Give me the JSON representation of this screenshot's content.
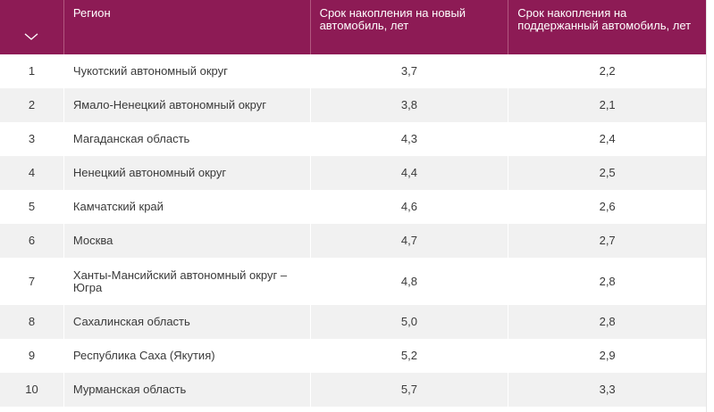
{
  "table": {
    "headers": {
      "region": "Регион",
      "new_car": "Срок накопления на новый автомобиль, лет",
      "used_car": "Срок накопления на поддержанный автомобиль, лет"
    },
    "rows": [
      {
        "n": "1",
        "region": "Чукотский автономный округ",
        "new": "3,7",
        "used": "2,2"
      },
      {
        "n": "2",
        "region": "Ямало-Ненецкий автономный округ",
        "new": "3,8",
        "used": "2,1"
      },
      {
        "n": "3",
        "region": "Магаданская область",
        "new": "4,3",
        "used": "2,4"
      },
      {
        "n": "4",
        "region": "Ненецкий автономный округ",
        "new": "4,4",
        "used": "2,5"
      },
      {
        "n": "5",
        "region": "Камчатский край",
        "new": "4,6",
        "used": "2,6"
      },
      {
        "n": "6",
        "region": "Москва",
        "new": "4,7",
        "used": "2,7"
      },
      {
        "n": "7",
        "region": "Ханты-Мансийский автономный округ – Югра",
        "new": "4,8",
        "used": "2,8"
      },
      {
        "n": "8",
        "region": "Сахалинская область",
        "new": "5,0",
        "used": "2,8"
      },
      {
        "n": "9",
        "region": "Республика Саха (Якутия)",
        "new": "5,2",
        "used": "2,9"
      },
      {
        "n": "10",
        "region": "Мурманская область",
        "new": "5,7",
        "used": "3,3"
      }
    ]
  },
  "colors": {
    "header_bg": "#8d1b55",
    "alt_row": "#f1f1f1"
  },
  "icons": {
    "sort": "chevron-down-icon"
  }
}
